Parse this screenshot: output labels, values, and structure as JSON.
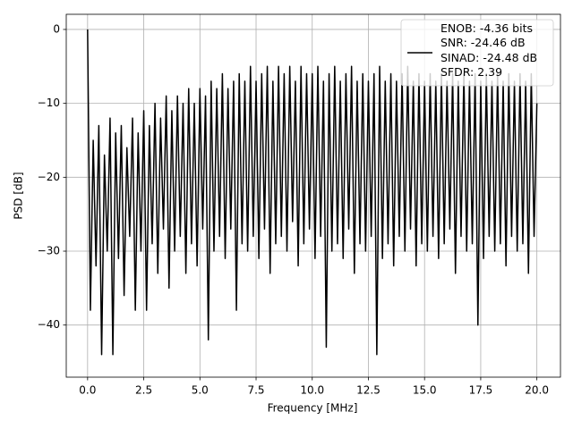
{
  "chart_data": {
    "type": "line",
    "xlabel": "Frequency [MHz]",
    "ylabel": "PSD [dB]",
    "x": [
      0,
      0.125,
      0.25,
      0.375,
      0.5,
      0.625,
      0.75,
      0.875,
      1,
      1.125,
      1.25,
      1.375,
      1.5,
      1.625,
      1.75,
      1.875,
      2,
      2.125,
      2.25,
      2.375,
      2.5,
      2.625,
      2.75,
      2.875,
      3,
      3.125,
      3.25,
      3.375,
      3.5,
      3.625,
      3.75,
      3.875,
      4,
      4.125,
      4.25,
      4.375,
      4.5,
      4.625,
      4.75,
      4.875,
      5,
      5.125,
      5.25,
      5.375,
      5.5,
      5.625,
      5.75,
      5.875,
      6,
      6.125,
      6.25,
      6.375,
      6.5,
      6.625,
      6.75,
      6.875,
      7,
      7.125,
      7.25,
      7.375,
      7.5,
      7.625,
      7.75,
      7.875,
      8,
      8.125,
      8.25,
      8.375,
      8.5,
      8.625,
      8.75,
      8.875,
      9,
      9.125,
      9.25,
      9.375,
      9.5,
      9.625,
      9.75,
      9.875,
      10,
      10.125,
      10.25,
      10.375,
      10.5,
      10.625,
      10.75,
      10.875,
      11,
      11.125,
      11.25,
      11.375,
      11.5,
      11.625,
      11.75,
      11.875,
      12,
      12.125,
      12.25,
      12.375,
      12.5,
      12.625,
      12.75,
      12.875,
      13,
      13.125,
      13.25,
      13.375,
      13.5,
      13.625,
      13.75,
      13.875,
      14,
      14.125,
      14.25,
      14.375,
      14.5,
      14.625,
      14.75,
      14.875,
      15,
      15.125,
      15.25,
      15.375,
      15.5,
      15.625,
      15.75,
      15.875,
      16,
      16.125,
      16.25,
      16.375,
      16.5,
      16.625,
      16.75,
      16.875,
      17,
      17.125,
      17.25,
      17.375,
      17.5,
      17.625,
      17.75,
      17.875,
      18,
      18.125,
      18.25,
      18.375,
      18.5,
      18.625,
      18.75,
      18.875,
      19,
      19.125,
      19.25,
      19.375,
      19.5,
      19.625,
      19.75,
      19.875,
      20
    ],
    "series": [
      {
        "name": "ENOB: -4.36 bits\nSNR: -24.46 dB\nSINAD: -24.48 dB\nSFDR: 2.39",
        "color": "#000000",
        "values": [
          0,
          -38,
          -15,
          -32,
          -13,
          -44,
          -17,
          -30,
          -12,
          -44,
          -14,
          -31,
          -13,
          -36,
          -16,
          -28,
          -12,
          -38,
          -14,
          -30,
          -11,
          -38,
          -13,
          -29,
          -10,
          -33,
          -12,
          -27,
          -9,
          -35,
          -11,
          -30,
          -9,
          -28,
          -10,
          -33,
          -8,
          -29,
          -10,
          -32,
          -8,
          -27,
          -9,
          -42,
          -7,
          -30,
          -8,
          -28,
          -6,
          -31,
          -8,
          -27,
          -7,
          -38,
          -6,
          -29,
          -7,
          -30,
          -5,
          -28,
          -7,
          -31,
          -6,
          -27,
          -5,
          -33,
          -7,
          -29,
          -5,
          -28,
          -6,
          -30,
          -5,
          -26,
          -7,
          -32,
          -5,
          -29,
          -6,
          -27,
          -6,
          -31,
          -5,
          -28,
          -7,
          -43,
          -6,
          -30,
          -5,
          -29,
          -7,
          -31,
          -6,
          -27,
          -5,
          -33,
          -7,
          -29,
          -6,
          -30,
          -7,
          -28,
          -6,
          -44,
          -5,
          -31,
          -7,
          -29,
          -6,
          -32,
          -7,
          -28,
          -6,
          -30,
          -5,
          -27,
          -7,
          -32,
          -6,
          -29,
          -7,
          -30,
          -6,
          -28,
          -7,
          -31,
          -6,
          -29,
          -7,
          -27,
          -6,
          -33,
          -7,
          -28,
          -6,
          -30,
          -7,
          -29,
          -6,
          -40,
          -7,
          -31,
          -6,
          -28,
          -7,
          -30,
          -6,
          -29,
          -7,
          -32,
          -6,
          -28,
          -7,
          -30,
          -6,
          -29,
          -7,
          -33,
          -6,
          -28,
          -10
        ]
      }
    ],
    "xlim": [
      -0.95,
      21.05
    ],
    "ylim": [
      -47.05,
      2.05
    ],
    "xticks": [
      {
        "value": 0,
        "label": "0.0"
      },
      {
        "value": 2.5,
        "label": "2.5"
      },
      {
        "value": 5,
        "label": "5.0"
      },
      {
        "value": 7.5,
        "label": "7.5"
      },
      {
        "value": 10,
        "label": "10.0"
      },
      {
        "value": 12.5,
        "label": "12.5"
      },
      {
        "value": 15,
        "label": "15.0"
      },
      {
        "value": 17.5,
        "label": "17.5"
      },
      {
        "value": 20,
        "label": "20.0"
      }
    ],
    "yticks": [
      {
        "value": -40,
        "label": "−40"
      },
      {
        "value": -30,
        "label": "−30"
      },
      {
        "value": -20,
        "label": "−20"
      },
      {
        "value": -10,
        "label": "−10"
      },
      0
    ],
    "grid": true,
    "legend": "upper right"
  }
}
